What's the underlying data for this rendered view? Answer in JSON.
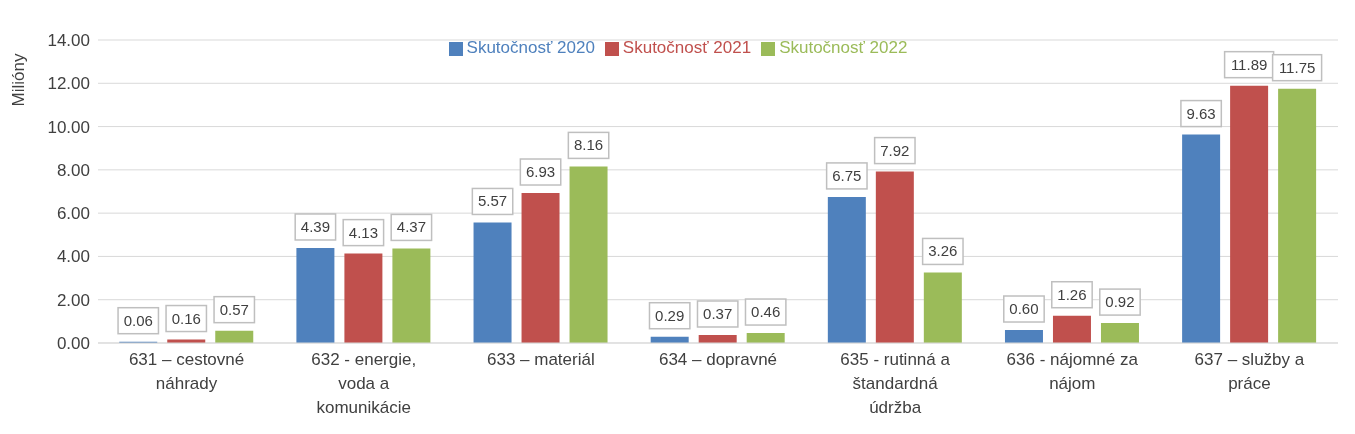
{
  "chart_data": {
    "type": "bar",
    "ylabel": "Milióny",
    "categories": [
      "631 – cestovné náhrady",
      "632 - energie, voda a komunikácie",
      "633 – materiál",
      "634 – dopravné",
      "635 - rutinná a štandardná údržba",
      "636 - nájomné za nájom",
      "637 – služby a práce"
    ],
    "series": [
      {
        "name": "Skutočnosť 2020",
        "color": "#4f81bd",
        "values": [
          0.06,
          4.39,
          5.57,
          0.29,
          6.75,
          0.6,
          9.63
        ],
        "value_labels": [
          "0.06",
          "4.39",
          "5.57",
          "0.29",
          "6.75",
          "0.60",
          "9.63"
        ]
      },
      {
        "name": "Skutočnosť 2021",
        "color": "#c0504d",
        "values": [
          0.16,
          4.13,
          6.93,
          0.37,
          7.92,
          1.26,
          11.89
        ],
        "value_labels": [
          "0.16",
          "4.13",
          "6.93",
          "0.37",
          "7.92",
          "1.26",
          "11.89"
        ]
      },
      {
        "name": "Skutočnosť 2022",
        "color": "#9bbb59",
        "values": [
          0.57,
          4.37,
          8.16,
          0.46,
          3.26,
          0.92,
          11.75
        ],
        "value_labels": [
          "0.57",
          "4.37",
          "8.16",
          "0.46",
          "3.26",
          "0.92",
          "11.75"
        ]
      }
    ],
    "ylim": [
      0,
      14
    ],
    "yticks": [
      {
        "value": 0,
        "label": "0.00"
      },
      {
        "value": 2,
        "label": "2.00"
      },
      {
        "value": 4,
        "label": "4.00"
      },
      {
        "value": 6,
        "label": "6.00"
      },
      {
        "value": 8,
        "label": "8.00"
      },
      {
        "value": 10,
        "label": "10.00"
      },
      {
        "value": 12,
        "label": "12.00"
      },
      {
        "value": 14,
        "label": "14.00"
      }
    ],
    "grid": "y",
    "legend": "top"
  }
}
